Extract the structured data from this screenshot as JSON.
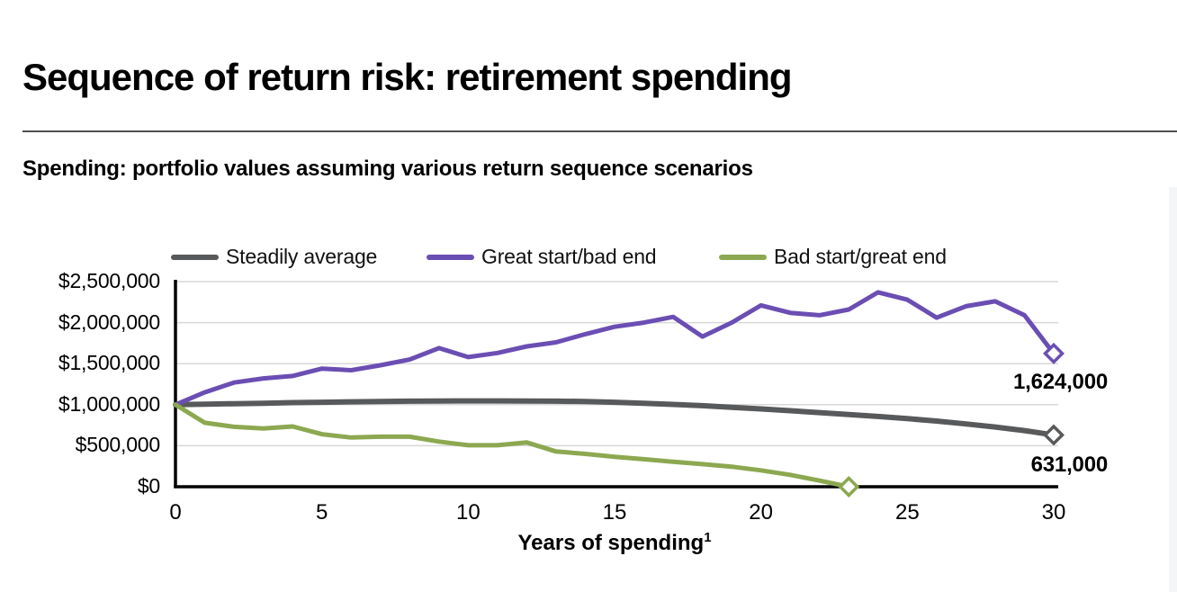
{
  "page": {
    "title": "Sequence of return risk: retirement spending",
    "subtitle": "Spending: portfolio values assuming various return sequence scenarios"
  },
  "chart_data": {
    "type": "line",
    "title": "Spending: portfolio values assuming various return sequence scenarios",
    "xlabel": "Years of spending",
    "xlabel_footnote_marker": "1",
    "ylabel": "",
    "x_unit": "years",
    "xlim": [
      0,
      30
    ],
    "ylim": [
      0,
      2500000
    ],
    "grid": "horizontal",
    "grid_color": "#D8D8D8",
    "axis_color": "#000000",
    "legend_position": "top",
    "xticks": [
      0,
      5,
      10,
      15,
      20,
      25,
      30
    ],
    "yticks": [
      {
        "label": "$0",
        "value": 0
      },
      {
        "label": "$500,000",
        "value": 500000
      },
      {
        "label": "$1,000,000",
        "value": 1000000
      },
      {
        "label": "$1,500,000",
        "value": 1500000
      },
      {
        "label": "$2,000,000",
        "value": 2000000
      },
      {
        "label": "$2,500,000",
        "value": 2500000
      }
    ],
    "series": [
      {
        "name": "Steadily average",
        "color": "#58595B",
        "line_width": 6,
        "marker_end": "diamond",
        "final_value_label": "631,000",
        "values": [
          1000000,
          1005000,
          1012000,
          1018000,
          1025000,
          1030000,
          1035000,
          1040000,
          1043000,
          1045000,
          1046000,
          1046000,
          1045000,
          1043000,
          1040000,
          1030000,
          1018000,
          1003000,
          988000,
          968000,
          948000,
          926000,
          904000,
          880000,
          856000,
          830000,
          800000,
          765000,
          728000,
          684000,
          631000
        ]
      },
      {
        "name": "Great start/bad end",
        "color": "#6B4EB3",
        "line_width": 5,
        "marker_end": "diamond",
        "final_value_label": "1,624,000",
        "values": [
          1000000,
          1150000,
          1270000,
          1320000,
          1350000,
          1440000,
          1420000,
          1480000,
          1550000,
          1690000,
          1580000,
          1630000,
          1710000,
          1760000,
          1860000,
          1950000,
          2000000,
          2070000,
          1830000,
          2000000,
          2210000,
          2120000,
          2090000,
          2160000,
          2370000,
          2280000,
          2060000,
          2200000,
          2260000,
          2090000,
          1624000
        ]
      },
      {
        "name": "Bad start/great end",
        "color": "#8CA850",
        "line_width": 5,
        "marker_end": "diamond",
        "final_value_label": "",
        "values": [
          1000000,
          780000,
          730000,
          710000,
          735000,
          640000,
          600000,
          610000,
          610000,
          550000,
          505000,
          505000,
          540000,
          430000,
          400000,
          365000,
          335000,
          305000,
          275000,
          245000,
          200000,
          145000,
          75000,
          0
        ]
      }
    ]
  }
}
